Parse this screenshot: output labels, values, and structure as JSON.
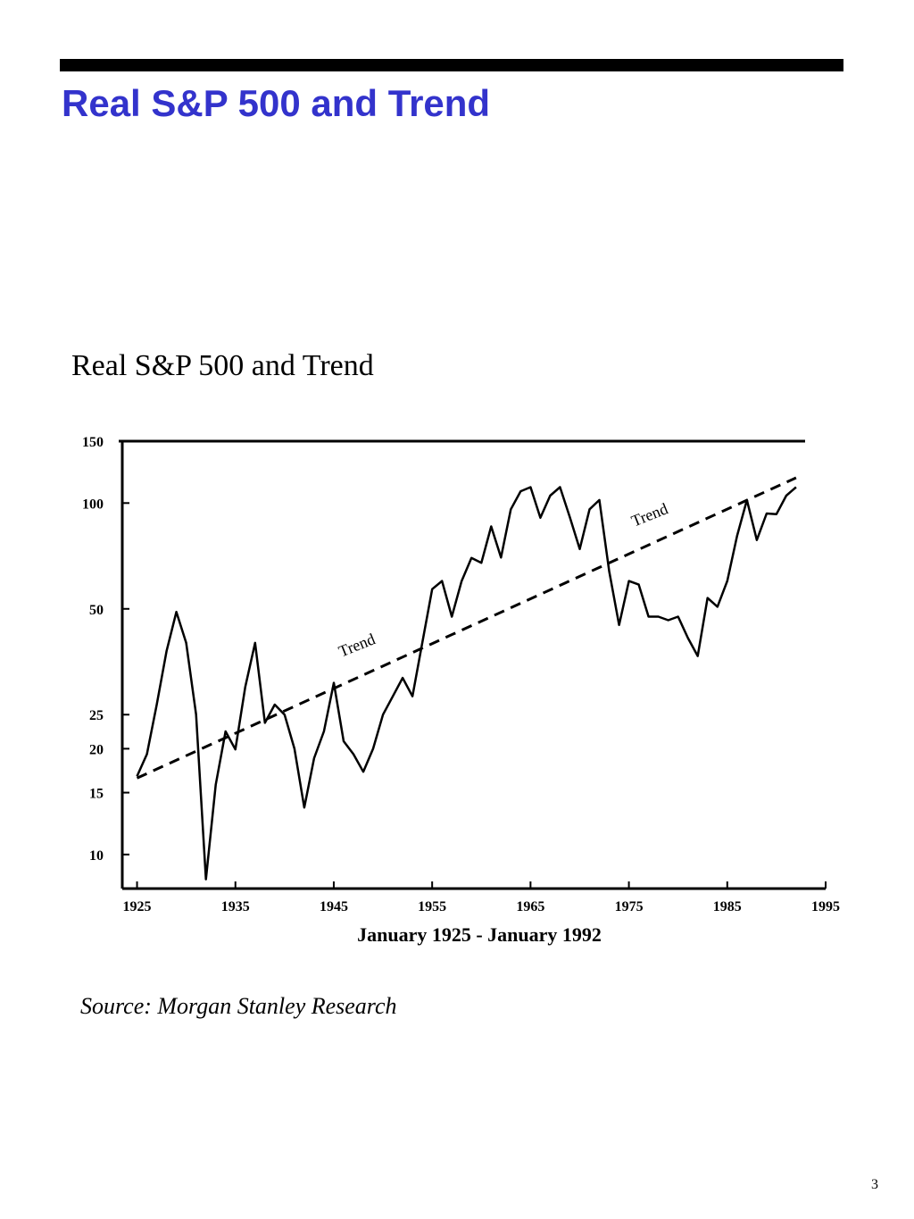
{
  "slide_title": "Real S&P 500 and Trend",
  "chart_data": {
    "type": "line",
    "title": "Real S&P 500 and Trend",
    "x_label": "January 1925 - January 1992",
    "yscale": "log",
    "xlim": [
      1923.5,
      1995
    ],
    "ylim": [
      8,
      150
    ],
    "xticks": [
      1925,
      1935,
      1945,
      1955,
      1965,
      1975,
      1985,
      1995
    ],
    "yticks": [
      10,
      15,
      20,
      25,
      50,
      100,
      150
    ],
    "annotations": [
      "Trend",
      "Trend"
    ],
    "series": [
      {
        "name": "Real S&P 500",
        "color": "#000000",
        "dashed": false,
        "x": [
          1925,
          1926,
          1927,
          1928,
          1929,
          1930,
          1931,
          1932,
          1933,
          1934,
          1935,
          1936,
          1937,
          1938,
          1939,
          1940,
          1941,
          1942,
          1943,
          1944,
          1945,
          1946,
          1947,
          1948,
          1949,
          1950,
          1951,
          1952,
          1953,
          1954,
          1955,
          1956,
          1957,
          1958,
          1959,
          1960,
          1961,
          1962,
          1963,
          1964,
          1965,
          1966,
          1967,
          1968,
          1969,
          1970,
          1971,
          1972,
          1973,
          1974,
          1975,
          1976,
          1977,
          1978,
          1979,
          1980,
          1981,
          1982,
          1983,
          1984,
          1985,
          1986,
          1987,
          1988,
          1989,
          1990,
          1991,
          1992
        ],
        "values": [
          16.7,
          19.3,
          26.7,
          37.9,
          49,
          40,
          25,
          8.5,
          15.8,
          22.4,
          19.9,
          30,
          40,
          23.7,
          26.7,
          25,
          20,
          13.6,
          18.8,
          22.4,
          30.8,
          21,
          19.3,
          17.2,
          20,
          25,
          28.2,
          31.8,
          28.2,
          40,
          56.9,
          60,
          47.5,
          60,
          69.8,
          67.6,
          85.8,
          70,
          96,
          108,
          111,
          90.8,
          105,
          111,
          91,
          74,
          96,
          102,
          64,
          45,
          60,
          58.6,
          47.5,
          47.5,
          46.4,
          47.5,
          41.3,
          36.7,
          53.7,
          50.7,
          60,
          80.7,
          102,
          78.5,
          93.4,
          93,
          105,
          111
        ]
      },
      {
        "name": "Trend",
        "color": "#000000",
        "dashed": true,
        "x": [
          1925,
          1992
        ],
        "values": [
          16.5,
          118
        ]
      }
    ]
  },
  "source": "Source:  Morgan Stanley Research",
  "page_number": "3"
}
